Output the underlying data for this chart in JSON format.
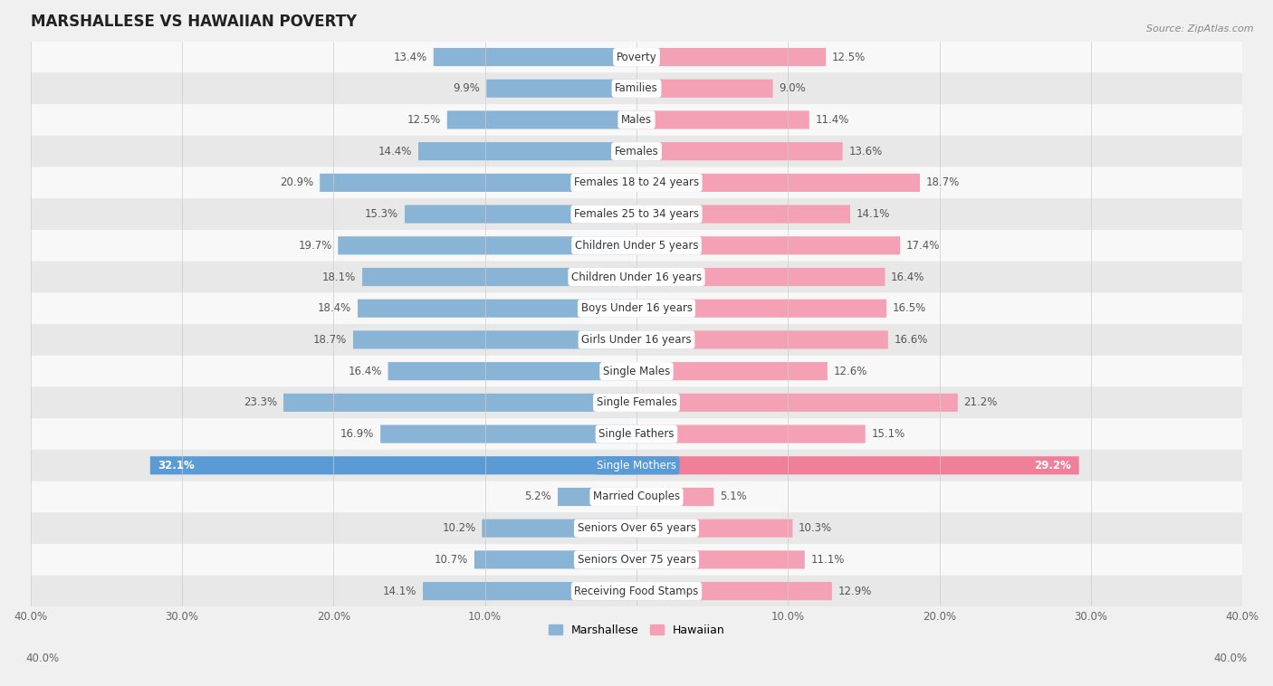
{
  "title": "MARSHALLESE VS HAWAIIAN POVERTY",
  "source": "Source: ZipAtlas.com",
  "categories": [
    "Poverty",
    "Families",
    "Males",
    "Females",
    "Females 18 to 24 years",
    "Females 25 to 34 years",
    "Children Under 5 years",
    "Children Under 16 years",
    "Boys Under 16 years",
    "Girls Under 16 years",
    "Single Males",
    "Single Females",
    "Single Fathers",
    "Single Mothers",
    "Married Couples",
    "Seniors Over 65 years",
    "Seniors Over 75 years",
    "Receiving Food Stamps"
  ],
  "marshallese": [
    13.4,
    9.9,
    12.5,
    14.4,
    20.9,
    15.3,
    19.7,
    18.1,
    18.4,
    18.7,
    16.4,
    23.3,
    16.9,
    32.1,
    5.2,
    10.2,
    10.7,
    14.1
  ],
  "hawaiian": [
    12.5,
    9.0,
    11.4,
    13.6,
    18.7,
    14.1,
    17.4,
    16.4,
    16.5,
    16.6,
    12.6,
    21.2,
    15.1,
    29.2,
    5.1,
    10.3,
    11.1,
    12.9
  ],
  "marshallese_color": "#8ab4d6",
  "hawaiian_color": "#f4a0b5",
  "marshallese_highlight": "#5b9bd5",
  "hawaiian_highlight": "#f08099",
  "axis_max": 40.0,
  "bg_color": "#f0f0f0",
  "row_color_light": "#f8f8f8",
  "row_color_dark": "#e8e8e8",
  "bar_height": 0.58,
  "label_fontsize": 8.5,
  "title_fontsize": 12,
  "legend_fontsize": 9,
  "value_color": "#555555",
  "cat_label_color": "#333333"
}
